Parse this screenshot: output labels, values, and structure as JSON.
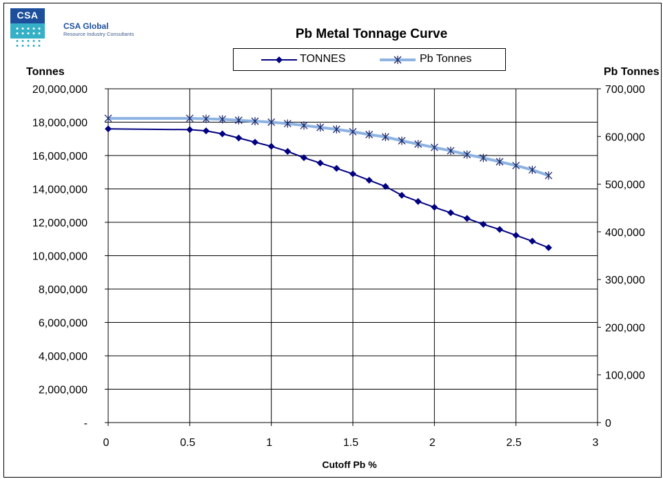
{
  "header": {
    "logo_text": "CSA",
    "company_name": "CSA Global",
    "company_tagline": "Resource Industry Consultants"
  },
  "chart_data": {
    "type": "line",
    "title": "Pb Metal Tonnage Curve",
    "xlabel": "Cutoff Pb %",
    "ylabel": "Tonnes",
    "y2label": "Pb Tonnes",
    "xlim": [
      0,
      3
    ],
    "ylim": [
      0,
      20000000
    ],
    "y2lim": [
      0,
      700000
    ],
    "x_ticks": [
      "0",
      "0.5",
      "1",
      "1.5",
      "2",
      "2.5",
      "3"
    ],
    "y_ticks": [
      "-",
      "2,000,000",
      "4,000,000",
      "6,000,000",
      "8,000,000",
      "10,000,000",
      "12,000,000",
      "14,000,000",
      "16,000,000",
      "18,000,000",
      "20,000,000"
    ],
    "y2_ticks": [
      "0",
      "100,000",
      "200,000",
      "300,000",
      "400,000",
      "500,000",
      "600,000",
      "700,000"
    ],
    "grid": true,
    "legend_position": "top-center",
    "x": [
      0,
      0.5,
      0.6,
      0.7,
      0.8,
      0.9,
      1.0,
      1.1,
      1.2,
      1.3,
      1.4,
      1.5,
      1.6,
      1.7,
      1.8,
      1.9,
      2.0,
      2.1,
      2.2,
      2.3,
      2.4,
      2.5,
      2.6,
      2.7
    ],
    "series": [
      {
        "name": "TONNES",
        "axis": "left",
        "color": "#000080",
        "marker": "diamond",
        "values": [
          17600000,
          17550000,
          17480000,
          17300000,
          17050000,
          16800000,
          16550000,
          16250000,
          15870000,
          15550000,
          15230000,
          14900000,
          14520000,
          14150000,
          13620000,
          13250000,
          12900000,
          12570000,
          12230000,
          11880000,
          11570000,
          11220000,
          10870000,
          10480000
        ]
      },
      {
        "name": "Pb Tonnes",
        "axis": "right",
        "color": "#8db3e2",
        "marker": "asterisk",
        "values": [
          638000,
          638000,
          637000,
          636000,
          634000,
          632000,
          630000,
          627000,
          623000,
          619000,
          615000,
          610000,
          604000,
          599000,
          591000,
          584000,
          577000,
          570000,
          562000,
          555000,
          547000,
          539000,
          530000,
          518000
        ]
      }
    ]
  }
}
